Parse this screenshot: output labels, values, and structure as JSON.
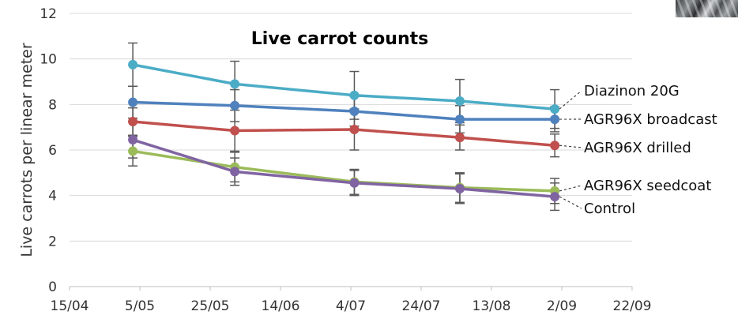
{
  "chart_data": {
    "type": "line",
    "title": "Live carrot counts",
    "xlabel": "",
    "ylabel": "Live carrots per linear meter",
    "ylim": [
      0,
      12
    ],
    "yticks": [
      0,
      2,
      4,
      6,
      8,
      10,
      12
    ],
    "xlim": [
      "2024-04-15",
      "2024-09-22"
    ],
    "xtick_labels": [
      "15/04",
      "5/05",
      "25/05",
      "14/06",
      "4/07",
      "24/07",
      "13/08",
      "2/09",
      "22/09"
    ],
    "x": [
      "2024-05-03",
      "2024-06-01",
      "2024-07-05",
      "2024-08-04",
      "2024-08-31"
    ],
    "grid": "horizontal",
    "error_bars": true,
    "series": [
      {
        "name": "Diazinon 20G",
        "color": "#4bacc6",
        "values": [
          9.75,
          8.9,
          8.4,
          8.15,
          7.8
        ],
        "errors": [
          0.95,
          1.0,
          1.05,
          0.95,
          0.85
        ]
      },
      {
        "name": "AGR96X broadcast",
        "color": "#4f81bd",
        "values": [
          8.1,
          7.95,
          7.7,
          7.35,
          7.35
        ],
        "errors": [
          0.7,
          0.7,
          0.65,
          0.6,
          0.55
        ]
      },
      {
        "name": "AGR96X drilled",
        "color": "#c0504d",
        "values": [
          7.25,
          6.85,
          6.9,
          6.55,
          6.2
        ],
        "errors": [
          0.6,
          0.9,
          0.9,
          0.55,
          0.5
        ]
      },
      {
        "name": "AGR96X seedcoat",
        "color": "#9bbb59",
        "values": [
          5.95,
          5.25,
          4.6,
          4.35,
          4.2
        ],
        "errors": [
          0.65,
          0.65,
          0.55,
          0.65,
          0.55
        ]
      },
      {
        "name": "Control",
        "color": "#8064a2",
        "values": [
          6.45,
          5.05,
          4.55,
          4.3,
          3.95
        ],
        "errors": [
          0.8,
          0.6,
          0.55,
          0.65,
          0.6
        ]
      }
    ]
  }
}
